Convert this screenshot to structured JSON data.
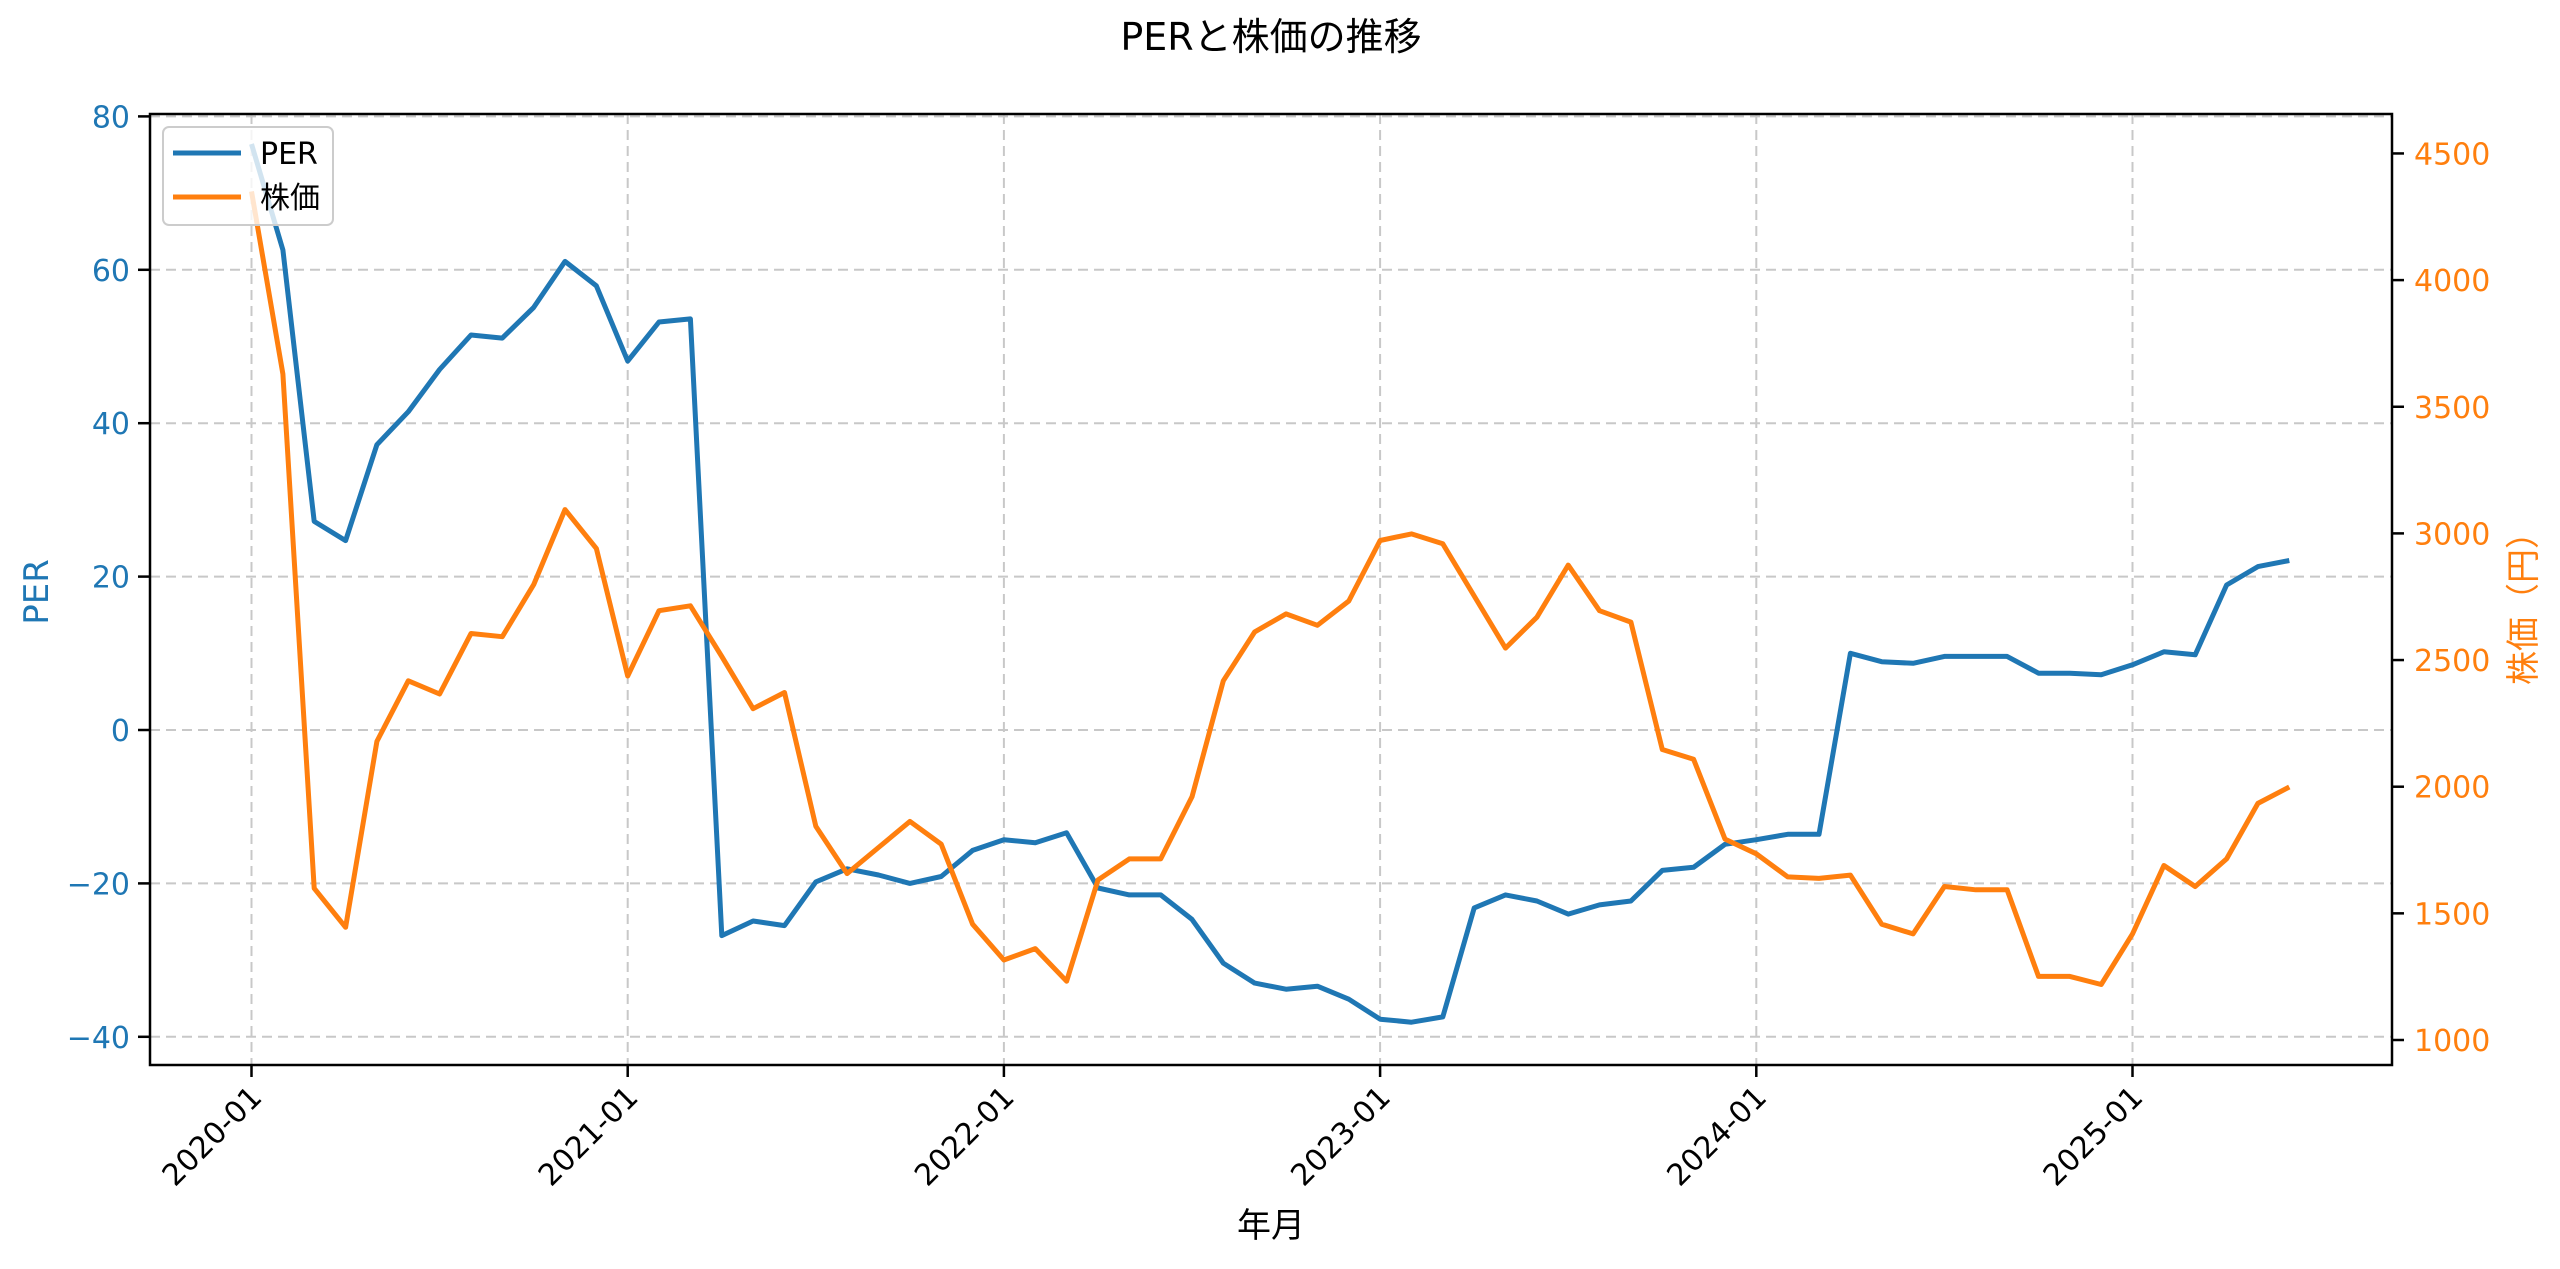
{
  "chart_data": {
    "type": "line",
    "title": "PERと株価の推移",
    "xlabel": "年月",
    "ylabel": "PER",
    "ylabel_right": "株価（円）",
    "ylim": [
      -43.5,
      80.7
    ],
    "ylim_right": [
      900,
      4650
    ],
    "yticks": [
      80,
      60,
      40,
      20,
      0,
      -20,
      -40
    ],
    "yticks_right": [
      4500,
      4000,
      3500,
      3000,
      2500,
      2000,
      1500,
      1000
    ],
    "xticks": [
      "2020-01",
      "2021-01",
      "2022-01",
      "2023-01",
      "2024-01",
      "2025-01"
    ],
    "grid": true,
    "legend_position": "upper left",
    "colors": {
      "per": "#1f77b4",
      "price": "#ff7f0e"
    },
    "x": [
      "2020-01",
      "2020-02",
      "2020-03",
      "2020-04",
      "2020-05",
      "2020-06",
      "2020-07",
      "2020-08",
      "2020-09",
      "2020-10",
      "2020-11",
      "2020-12",
      "2021-01",
      "2021-02",
      "2021-03",
      "2021-04",
      "2021-05",
      "2021-06",
      "2021-07",
      "2021-08",
      "2021-09",
      "2021-10",
      "2021-11",
      "2021-12",
      "2022-01",
      "2022-02",
      "2022-03",
      "2022-04",
      "2022-05",
      "2022-06",
      "2022-07",
      "2022-08",
      "2022-09",
      "2022-10",
      "2022-11",
      "2022-12",
      "2023-01",
      "2023-02",
      "2023-03",
      "2023-04",
      "2023-05",
      "2023-06",
      "2023-07",
      "2023-08",
      "2023-09",
      "2023-10",
      "2023-11",
      "2023-12",
      "2024-01",
      "2024-02",
      "2024-03",
      "2024-04",
      "2024-05",
      "2024-06",
      "2024-07",
      "2024-08",
      "2024-09",
      "2024-10",
      "2024-11",
      "2024-12",
      "2025-01",
      "2025-02",
      "2025-03",
      "2025-04",
      "2025-05",
      "2025-06"
    ],
    "series": [
      {
        "name": "PER",
        "axis": "left",
        "values": [
          76.4,
          62.6,
          27.2,
          24.7,
          37.2,
          41.5,
          47.0,
          51.5,
          51.1,
          55.1,
          61.1,
          57.9,
          48.1,
          53.2,
          53.6,
          -26.8,
          -24.9,
          -25.5,
          -19.8,
          -18.1,
          -18.9,
          -20.0,
          -19.1,
          -15.7,
          -14.3,
          -14.7,
          -13.4,
          -20.6,
          -21.5,
          -21.5,
          -24.7,
          -30.4,
          -33.0,
          -33.8,
          -33.4,
          -35.1,
          -37.7,
          -38.1,
          -37.4,
          -23.2,
          -21.5,
          -22.3,
          -24.0,
          -22.8,
          -22.3,
          -18.3,
          -17.9,
          -14.9,
          -14.3,
          -13.6,
          -13.6,
          10.0,
          8.9,
          8.7,
          9.6,
          9.6,
          9.6,
          7.4,
          7.4,
          7.2,
          8.5,
          10.2,
          9.8,
          18.9,
          21.3,
          22.1
        ]
      },
      {
        "name": "株価",
        "axis": "right",
        "values": [
          4350,
          3629,
          1599,
          1445,
          2179,
          2418,
          2366,
          2605,
          2592,
          2798,
          3094,
          2940,
          2437,
          2695,
          2714,
          2514,
          2308,
          2372,
          1844,
          1657,
          1760,
          1863,
          1773,
          1457,
          1316,
          1361,
          1232,
          1632,
          1715,
          1715,
          1960,
          2418,
          2611,
          2682,
          2637,
          2733,
          2972,
          2998,
          2959,
          2753,
          2547,
          2669,
          2875,
          2695,
          2650,
          2147,
          2108,
          1793,
          1735,
          1644,
          1638,
          1651,
          1457,
          1419,
          1606,
          1593,
          1593,
          1251,
          1251,
          1219,
          1419,
          1689,
          1606,
          1715,
          1934,
          1999
        ]
      }
    ]
  },
  "legend": {
    "items": [
      {
        "label": "PER",
        "color": "#1f77b4"
      },
      {
        "label": "株価",
        "color": "#ff7f0e"
      }
    ]
  }
}
